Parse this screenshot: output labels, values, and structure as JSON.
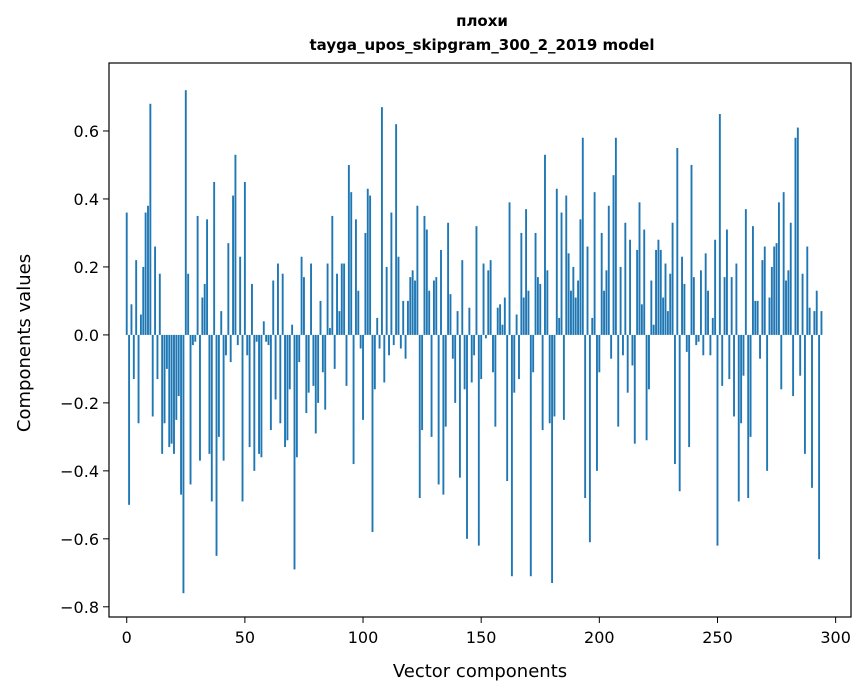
{
  "chart_data": {
    "type": "bar",
    "title": "плохи",
    "subtitle": "tayga_upos_skipgram_300_2_2019 model",
    "xlabel": "Vector components",
    "ylabel": "Components values",
    "xlim": [
      -7.5,
      306.5
    ],
    "ylim": [
      -0.83,
      0.8
    ],
    "xticks": [
      0,
      50,
      100,
      150,
      200,
      250,
      300
    ],
    "xtick_labels": [
      "0",
      "50",
      "100",
      "150",
      "200",
      "250",
      "300"
    ],
    "yticks": [
      -0.8,
      -0.6,
      -0.4,
      -0.2,
      0.0,
      0.2,
      0.4,
      0.6
    ],
    "ytick_labels": [
      "−0.8",
      "−0.6",
      "−0.4",
      "−0.2",
      "0.0",
      "0.2",
      "0.4",
      "0.6"
    ],
    "bar_color": "#1f77b4",
    "grid": false,
    "legend": "none",
    "values": [
      0.36,
      -0.5,
      0.09,
      -0.13,
      0.22,
      -0.26,
      0.06,
      0.2,
      0.36,
      0.38,
      0.68,
      -0.24,
      0.26,
      -0.13,
      0.18,
      -0.35,
      -0.26,
      -0.1,
      -0.33,
      -0.32,
      -0.35,
      -0.25,
      -0.18,
      -0.47,
      -0.76,
      0.72,
      0.18,
      -0.44,
      -0.03,
      -0.02,
      0.35,
      -0.37,
      0.11,
      0.15,
      0.34,
      -0.35,
      -0.49,
      0.45,
      -0.65,
      -0.3,
      0.07,
      -0.37,
      -0.06,
      0.27,
      -0.08,
      0.41,
      0.53,
      -0.03,
      0.23,
      -0.49,
      0.45,
      -0.06,
      -0.33,
      0.15,
      -0.4,
      -0.02,
      -0.35,
      -0.36,
      0.04,
      -0.02,
      -0.03,
      -0.28,
      0.16,
      -0.19,
      0.21,
      -0.26,
      0.18,
      -0.33,
      -0.31,
      -0.16,
      0.03,
      -0.69,
      -0.36,
      -0.08,
      0.23,
      0.17,
      -0.23,
      -0.17,
      0.21,
      -0.15,
      -0.29,
      -0.2,
      0.1,
      -0.11,
      -0.22,
      0.21,
      0.02,
      0.35,
      -0.1,
      0.18,
      0.07,
      0.21,
      0.21,
      -0.15,
      0.5,
      0.42,
      -0.38,
      0.34,
      0.13,
      -0.04,
      -0.25,
      0.3,
      0.43,
      0.41,
      -0.58,
      -0.16,
      0.05,
      -0.04,
      0.67,
      -0.14,
      0.2,
      -0.06,
      0.36,
      -0.03,
      0.62,
      0.23,
      -0.04,
      0.1,
      -0.07,
      0.1,
      0.17,
      0.19,
      0.16,
      0.38,
      -0.48,
      -0.28,
      0.35,
      0.31,
      0.13,
      -0.3,
      0.16,
      0.17,
      -0.44,
      0.25,
      -0.47,
      -0.27,
      0.33,
      0.12,
      -0.07,
      -0.2,
      0.07,
      -0.42,
      0.22,
      -0.16,
      -0.6,
      0.08,
      -0.14,
      -0.06,
      0.32,
      -0.62,
      -0.13,
      0.21,
      -0.01,
      0.19,
      0.22,
      -0.11,
      -0.27,
      0.08,
      0.09,
      0.03,
      0.11,
      -0.43,
      0.39,
      -0.71,
      -0.17,
      0.06,
      -0.13,
      0.3,
      0.11,
      0.37,
      0.13,
      -0.71,
      -0.11,
      0.3,
      0.17,
      0.15,
      -0.28,
      0.53,
      0.19,
      -0.26,
      -0.73,
      -0.24,
      0.43,
      0.05,
      0.36,
      -0.25,
      0.41,
      0.24,
      0.13,
      0.2,
      0.11,
      0.16,
      0.34,
      0.58,
      -0.48,
      0.26,
      -0.61,
      0.05,
      0.42,
      -0.4,
      -0.11,
      0.3,
      0.13,
      0.19,
      0.38,
      -0.07,
      0.47,
      0.58,
      -0.27,
      0.2,
      -0.06,
      0.33,
      -0.17,
      0.28,
      -0.09,
      -0.32,
      0.25,
      0.39,
      0.09,
      0.31,
      -0.31,
      -0.16,
      0.16,
      0.03,
      0.25,
      0.28,
      0.25,
      0.11,
      0.21,
      0.07,
      0.18,
      0.33,
      -0.38,
      0.55,
      -0.46,
      0.23,
      0.15,
      -0.05,
      -0.33,
      0.5,
      0.17,
      -0.03,
      -0.02,
      0.19,
      -0.06,
      0.24,
      0.13,
      -0.06,
      0.05,
      0.28,
      -0.62,
      0.65,
      -0.15,
      0.17,
      0.31,
      -0.13,
      0.17,
      -0.24,
      0.21,
      -0.49,
      -0.26,
      -0.12,
      0.37,
      -0.48,
      -0.3,
      0.32,
      0.1,
      0.1,
      -0.07,
      0.22,
      0.26,
      -0.4,
      0.11,
      0.2,
      0.26,
      0.27,
      0.39,
      -0.16,
      0.42,
      0.16,
      0.19,
      0.33,
      -0.18,
      0.58,
      0.61,
      -0.12,
      0.18,
      -0.35,
      0.26,
      0.08,
      -0.45,
      0.07,
      0.13,
      -0.66,
      0.07
    ]
  }
}
